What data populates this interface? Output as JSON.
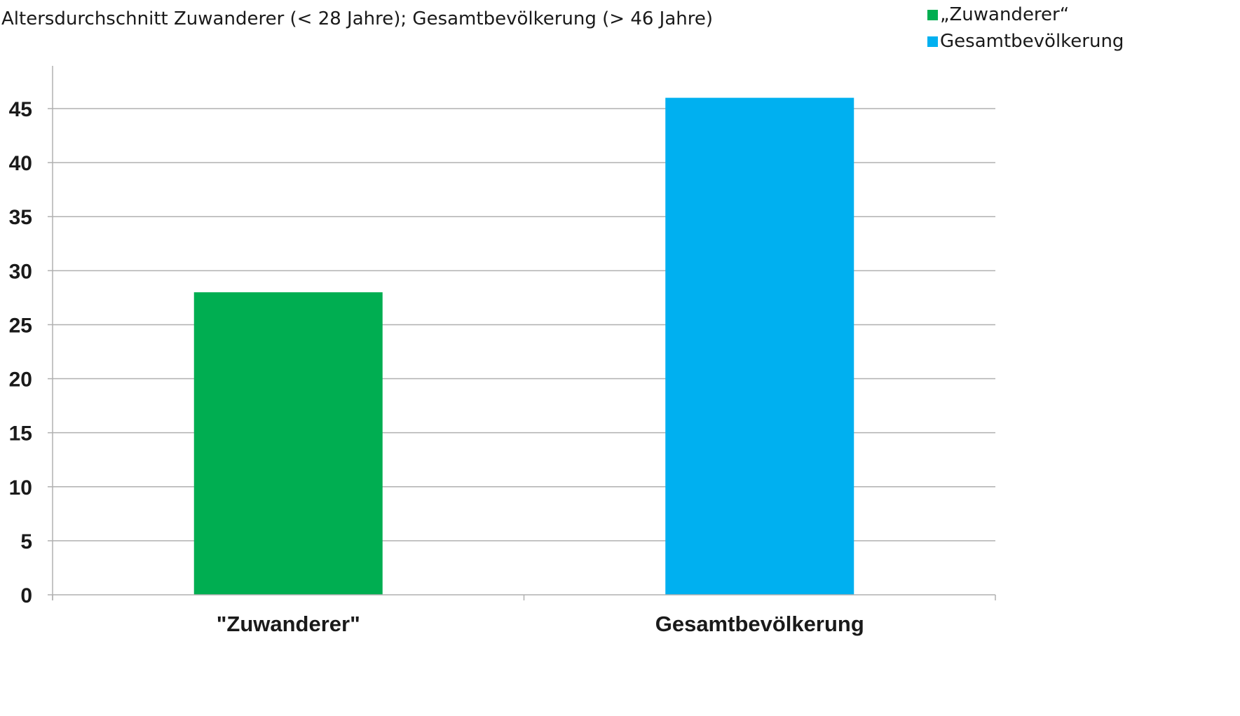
{
  "chart_data": {
    "type": "bar",
    "title": "Altersdurchschnitt Zuwanderer (< 28 Jahre); Gesamtbevölkerung (> 46 Jahre)",
    "categories": [
      "\"Zuwanderer\"",
      "Gesamtbevölkerung"
    ],
    "values": [
      28,
      46
    ],
    "colors": [
      "#00AE51",
      "#00B0F0"
    ],
    "legend": {
      "position": "top-right",
      "entries": [
        "„Zuwanderer“",
        "Gesamtbevölkerung"
      ]
    },
    "xlabel": "",
    "ylabel": "",
    "ylim": [
      0,
      45
    ],
    "yticks": [
      0,
      5,
      10,
      15,
      20,
      25,
      30,
      35,
      40,
      45
    ],
    "grid": true,
    "gridColor": "#B0B0B0"
  }
}
